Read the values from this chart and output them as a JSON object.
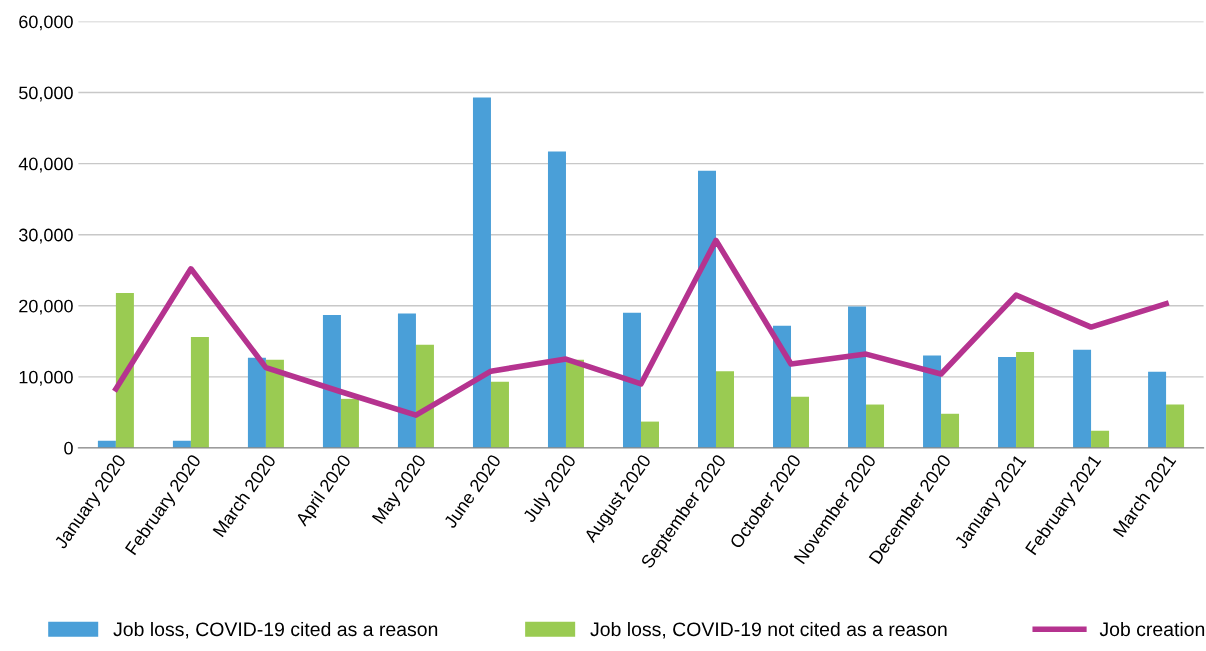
{
  "chart_data": {
    "type": "bar",
    "categories": [
      "January 2020",
      "February 2020",
      "March 2020",
      "April 2020",
      "May 2020",
      "June 2020",
      "July 2020",
      "August 2020",
      "September 2020",
      "October 2020",
      "November 2020",
      "December 2020",
      "January 2021",
      "February 2021",
      "March 2021"
    ],
    "series": [
      {
        "name": "Job loss, COVID-19 cited as a reason",
        "color": "#4a9fd8",
        "values": [
          1000,
          1000,
          12700,
          18700,
          18900,
          49300,
          41700,
          19000,
          39000,
          17200,
          19900,
          13000,
          12800,
          13800,
          10700
        ]
      },
      {
        "name": "Job loss, COVID-19 not cited as a reason",
        "color": "#9acb52",
        "values": [
          21800,
          15600,
          12400,
          6900,
          14500,
          9300,
          12400,
          3700,
          10800,
          7200,
          6100,
          4800,
          13500,
          2400,
          6100
        ]
      },
      {
        "name": "Job creation",
        "type": "line",
        "color": "#b5338f",
        "values": [
          8300,
          25200,
          11300,
          7900,
          4600,
          10800,
          12500,
          9000,
          29200,
          11800,
          13200,
          10400,
          21500,
          17000,
          20300
        ]
      }
    ],
    "ylim": [
      0,
      60000
    ],
    "yticks": [
      {
        "value": 0,
        "label": "0"
      },
      {
        "value": 10000,
        "label": "10,000"
      },
      {
        "value": 20000,
        "label": "20,000"
      },
      {
        "value": 30000,
        "label": "30,000"
      },
      {
        "value": 40000,
        "label": "40,000"
      },
      {
        "value": 50000,
        "label": "50,000"
      },
      {
        "value": 60000,
        "label": "60,000"
      }
    ],
    "grid": "y",
    "legend": "bottom",
    "marker": "none",
    "line_style": "solid"
  }
}
